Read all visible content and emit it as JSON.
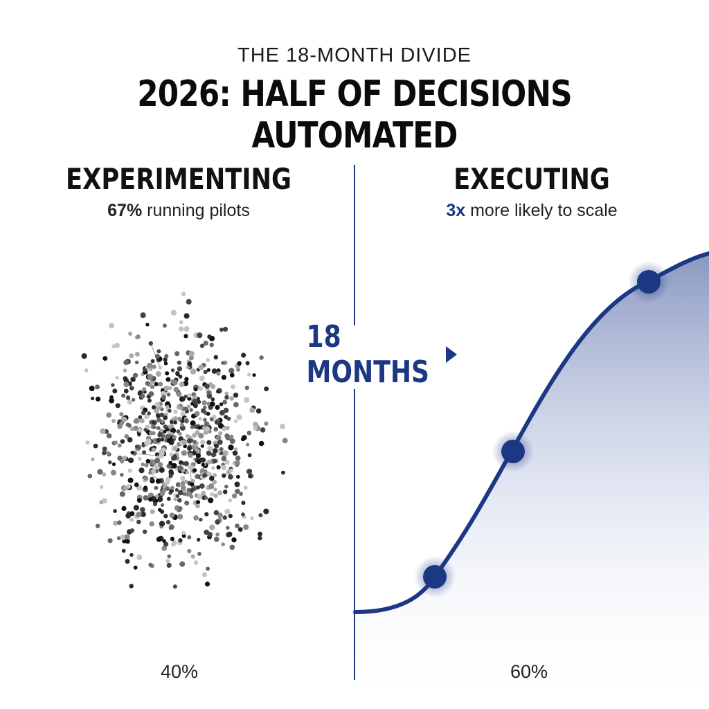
{
  "kicker": "THE 18-MONTH DIVIDE",
  "headline": "2026: HALF OF DECISIONS AUTOMATED",
  "left": {
    "title": "EXPERIMENTING",
    "stat_value": "67%",
    "stat_text": " running pilots",
    "percent": "40%"
  },
  "right": {
    "title": "EXECUTING",
    "stat_value": "3x",
    "stat_text": " more likely to scale",
    "percent": "60%"
  },
  "transition": {
    "label": "18 MONTHS",
    "arrow_icon": "triangle-right-icon"
  },
  "colors": {
    "accent": "#1c3783",
    "text": "#111111"
  }
}
